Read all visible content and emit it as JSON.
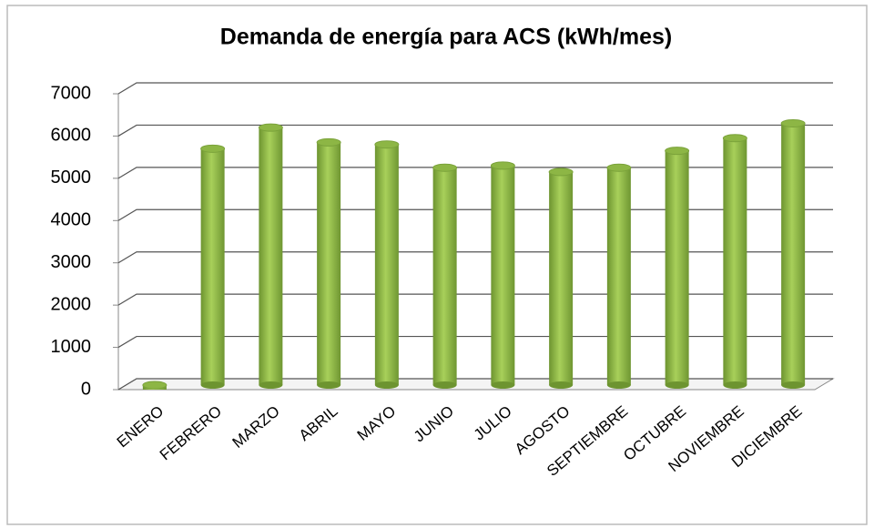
{
  "chart_data": {
    "type": "bar",
    "title": "Demanda de energía para ACS (kWh/mes)",
    "categories": [
      "ENERO",
      "FEBRERO",
      "MARZO",
      "ABRIL",
      "MAYO",
      "JUNIO",
      "JULIO",
      "AGOSTO",
      "SEPTIEMBRE",
      "OCTUBRE",
      "NOVIEMBRE",
      "DICIEMBRE"
    ],
    "values": [
      0,
      5700,
      6200,
      5850,
      5800,
      5250,
      5300,
      5150,
      5250,
      5650,
      5950,
      6300
    ],
    "color": "#8db645",
    "ylim": [
      0,
      7000
    ],
    "yticks": [
      0,
      1000,
      2000,
      3000,
      4000,
      5000,
      6000,
      7000
    ],
    "grid": true
  }
}
